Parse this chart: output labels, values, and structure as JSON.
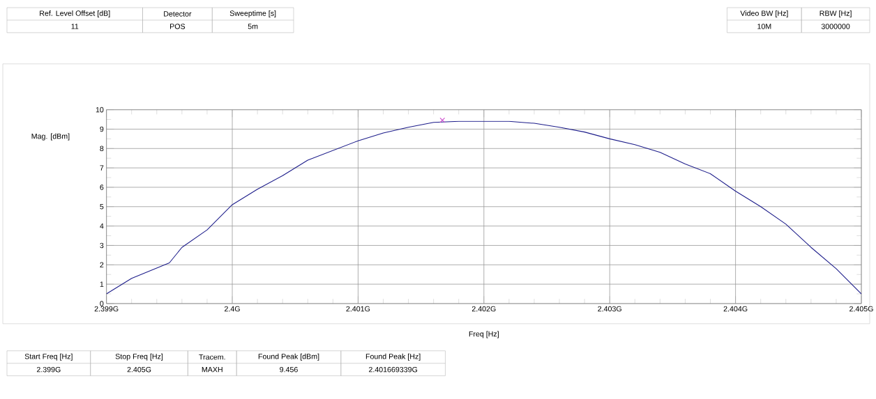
{
  "chart_data": {
    "type": "line",
    "xlabel": "Freq [Hz]",
    "ylabel": "Mag. [dBm]",
    "xlim": [
      2.399,
      2.405
    ],
    "ylim": [
      0,
      10
    ],
    "xticks": [
      {
        "value": 2.399,
        "label": "2.399G"
      },
      {
        "value": 2.4,
        "label": "2.4G"
      },
      {
        "value": 2.401,
        "label": "2.401G"
      },
      {
        "value": 2.402,
        "label": "2.402G"
      },
      {
        "value": 2.403,
        "label": "2.403G"
      },
      {
        "value": 2.404,
        "label": "2.404G"
      },
      {
        "value": 2.405,
        "label": "2.405G"
      }
    ],
    "yticks": [
      0,
      1,
      2,
      3,
      4,
      5,
      6,
      7,
      8,
      9,
      10
    ],
    "grid": true,
    "series": [
      {
        "type": "line",
        "color": "#1c1c8a",
        "marker": "none",
        "x": [
          2.399,
          2.3992,
          2.3995,
          2.3996,
          2.3998,
          2.4,
          2.4002,
          2.4004,
          2.4006,
          2.4008,
          2.401,
          2.4012,
          2.4014,
          2.4016,
          2.4018,
          2.402,
          2.4022,
          2.4024,
          2.4026,
          2.4028,
          2.403,
          2.4032,
          2.4034,
          2.4036,
          2.4038,
          2.404,
          2.4042,
          2.4044,
          2.4046,
          2.4048,
          2.405
        ],
        "values": [
          0.5,
          1.3,
          2.1,
          2.9,
          3.8,
          5.1,
          5.9,
          6.6,
          7.4,
          7.9,
          8.4,
          8.8,
          9.1,
          9.35,
          9.4,
          9.4,
          9.4,
          9.3,
          9.1,
          8.85,
          8.5,
          8.2,
          7.8,
          7.2,
          6.7,
          5.8,
          5.0,
          4.1,
          2.9,
          1.8,
          0.5
        ]
      },
      {
        "type": "scatter",
        "color": "#cc44cc",
        "marker": "cross",
        "x": [
          2.40167
        ],
        "values": [
          9.46
        ]
      }
    ],
    "annotations": [
      "Ref. Level Offset [dB]",
      "11",
      "Detector",
      "POS",
      "Sweeptime [s]",
      "5m",
      "Video BW [Hz]",
      "10M",
      "RBW [Hz]",
      "3000000",
      "Start Freq [Hz]",
      "2.399G",
      "Stop Freq [Hz]",
      "2.405G",
      "Tracem.",
      "MAXH",
      "Found Peak [dBm]",
      "9.456",
      "Found Peak [Hz]",
      "2.401669339G"
    ]
  }
}
